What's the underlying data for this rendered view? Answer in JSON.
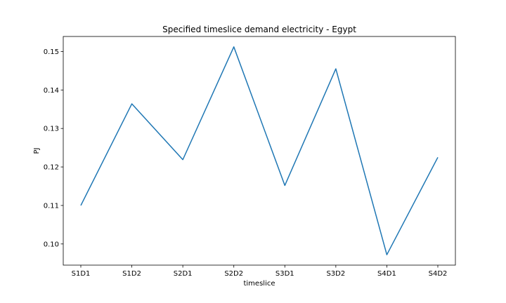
{
  "chart_data": {
    "type": "line",
    "title": "Specified timeslice demand electricity - Egypt",
    "xlabel": "timeslice",
    "ylabel": "PJ",
    "categories": [
      "S1D1",
      "S1D2",
      "S2D1",
      "S2D2",
      "S3D1",
      "S3D2",
      "S4D1",
      "S4D2"
    ],
    "series": [
      {
        "values": [
          0.11,
          0.1364,
          0.1219,
          0.1512,
          0.1152,
          0.1455,
          0.0972,
          0.1225
        ],
        "color": "#1f77b4"
      }
    ],
    "yticks": [
      0.1,
      0.11,
      0.12,
      0.13,
      0.14,
      0.15
    ],
    "ytick_labels": [
      "0.10",
      "0.11",
      "0.12",
      "0.13",
      "0.14",
      "0.15"
    ],
    "ylim": [
      0.0945,
      0.1539
    ],
    "grid": false,
    "legend": "none"
  }
}
